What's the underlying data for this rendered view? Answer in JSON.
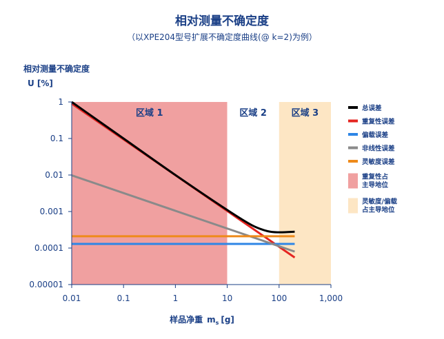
{
  "chart_data": {
    "type": "line",
    "title": "相对测量不确定度",
    "subtitle": "（以XPE204型号扩展不确定度曲线(@ k=2)为例）",
    "ylabel_line1": "相对测量不确定度",
    "ylabel_line2": "U [%]",
    "xlabel_main": "样品净重",
    "xlabel_var": "m",
    "xlabel_sub": "s",
    "xlabel_unit": "[g]",
    "xscale": "log",
    "yscale": "log",
    "xlim": [
      0.01,
      1000
    ],
    "ylim": [
      1e-05,
      1
    ],
    "xticks": [
      "0.01",
      "0.1",
      "1",
      "10",
      "100",
      "1,000"
    ],
    "xtick_values": [
      0.01,
      0.1,
      1,
      10,
      100,
      1000
    ],
    "yticks": [
      "1",
      "0.1",
      "0.01",
      "0.001",
      "0.0001",
      "0.00001"
    ],
    "ytick_values": [
      1,
      0.1,
      0.01,
      0.001,
      0.0001,
      1e-05
    ],
    "zones": [
      {
        "label": "区域 1",
        "x_start": 0.01,
        "x_end": 10,
        "color": "#f0a0a0"
      },
      {
        "label": "区域 2",
        "x_start": 10,
        "x_end": 100,
        "color": "#ffffff"
      },
      {
        "label": "区域 3",
        "x_start": 100,
        "x_end": 1000,
        "color": "#fde6c4"
      }
    ],
    "series": [
      {
        "name": "总误差",
        "color": "#000000",
        "x": [
          0.01,
          0.1,
          1,
          10,
          30,
          60,
          100,
          200
        ],
        "y": [
          1.0,
          0.1,
          0.01,
          0.0011,
          0.00042,
          0.00029,
          0.00027,
          0.00028
        ]
      },
      {
        "name": "重复性误差",
        "color": "#e52521",
        "x": [
          0.01,
          200
        ],
        "y": [
          0.9,
          5.5e-05
        ]
      },
      {
        "name": "偏载误差",
        "color": "#2e86e6",
        "x": [
          0.01,
          200
        ],
        "y": [
          0.00013,
          0.00013
        ]
      },
      {
        "name": "非线性误差",
        "color": "#8a8a8a",
        "x": [
          0.01,
          200
        ],
        "y": [
          0.0098,
          8e-05
        ]
      },
      {
        "name": "灵敏度误差",
        "color": "#ee8a1a",
        "x": [
          0.01,
          200
        ],
        "y": [
          0.00021,
          0.00021
        ]
      }
    ],
    "legend": [
      {
        "label": "总误差",
        "kind": "line",
        "color": "#000000"
      },
      {
        "label": "重复性误差",
        "kind": "line",
        "color": "#e52521"
      },
      {
        "label": "偏载误差",
        "kind": "line",
        "color": "#2e86e6"
      },
      {
        "label": "非线性误差",
        "kind": "line",
        "color": "#8a8a8a"
      },
      {
        "label": "灵敏度误差",
        "kind": "line",
        "color": "#ee8a1a"
      },
      {
        "label": "重复性占主导地位",
        "kind": "swatch",
        "color": "#f0a0a0"
      },
      {
        "label": "灵敏度/偏载占主导地位",
        "kind": "swatch",
        "color": "#fde6c4"
      }
    ],
    "legend_position": "right",
    "grid": false
  }
}
